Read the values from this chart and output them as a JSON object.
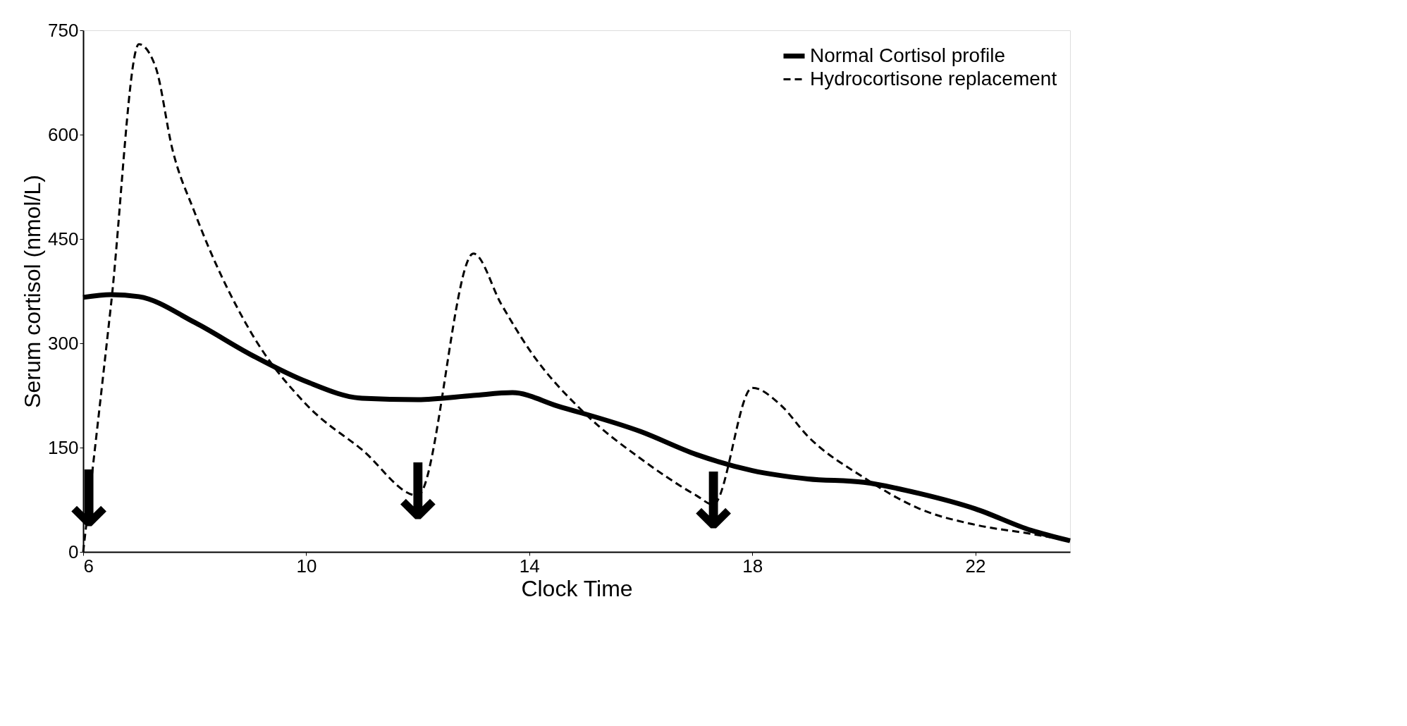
{
  "chart_data": {
    "type": "line",
    "xlabel": "Clock Time",
    "ylabel": "Serum cortisol (nmol/L)",
    "xlim": [
      6,
      23.7
    ],
    "ylim": [
      0,
      750
    ],
    "xticks": [
      6,
      10,
      14,
      18,
      22
    ],
    "yticks": [
      0,
      150,
      300,
      450,
      600,
      750
    ],
    "grid": false,
    "legend": "top right",
    "marker": "none",
    "series": [
      {
        "name": "Normal Cortisol profile",
        "color": "#000000",
        "line_style": "solid",
        "x": [
          6,
          6.5,
          7,
          8,
          9,
          10,
          11,
          12,
          13,
          13.7,
          14.5,
          16,
          17,
          18,
          19,
          20,
          21,
          22,
          23,
          23.7
        ],
        "values": [
          366,
          370,
          367,
          330,
          284,
          245,
          221,
          219,
          225,
          229,
          210,
          173,
          140,
          117,
          105,
          100,
          84,
          62,
          31,
          16
        ]
      },
      {
        "name": "Hydrocortisone replacement",
        "color": "#000000",
        "line_style": "dashed",
        "x": [
          6,
          6.5,
          7,
          7.3,
          7.6,
          8,
          9,
          10,
          11,
          12,
          13,
          13.5,
          14,
          15,
          16,
          17,
          17.3,
          18,
          18.5,
          19,
          20,
          21,
          22,
          23,
          23.7
        ],
        "values": [
          0,
          356,
          730,
          697,
          579,
          488,
          317,
          212,
          147,
          81,
          429,
          356,
          291,
          199,
          134,
          81,
          68,
          236,
          212,
          166,
          107,
          62,
          39,
          26,
          16
        ]
      }
    ],
    "annotations": [
      {
        "text": "↓",
        "x": 6.1,
        "y": 71
      },
      {
        "text": "↓",
        "x": 12,
        "y": 81
      },
      {
        "text": "↓",
        "x": 17.3,
        "y": 68
      }
    ]
  }
}
